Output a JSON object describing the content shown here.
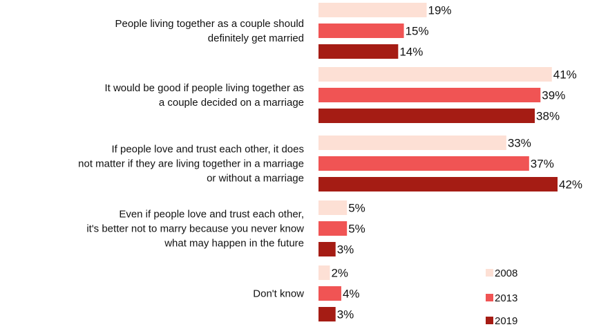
{
  "chart_data": {
    "type": "bar",
    "orientation": "horizontal",
    "categories": [
      [
        "People living together as a couple should",
        "definitely get married"
      ],
      [
        "It would be good if people living together as",
        "a couple decided on a marriage"
      ],
      [
        "If people love and trust each other, it does",
        "not matter if they are living together in a marriage",
        "or without a marriage"
      ],
      [
        "Even if people love and trust each other,",
        "it's better not to marry because you never know",
        "what may happen in the future"
      ],
      [
        "Don't know"
      ]
    ],
    "series": [
      {
        "name": "2008",
        "color": "#fde0d5",
        "values": [
          19,
          41,
          33,
          5,
          2
        ]
      },
      {
        "name": "2013",
        "color": "#f05454",
        "values": [
          15,
          39,
          37,
          5,
          4
        ]
      },
      {
        "name": "2019",
        "color": "#a51c14",
        "values": [
          14,
          38,
          42,
          3,
          3
        ]
      }
    ],
    "value_suffix": "%",
    "xlim": [
      0,
      42
    ],
    "grid": false,
    "legend_position": "bottom-right"
  }
}
